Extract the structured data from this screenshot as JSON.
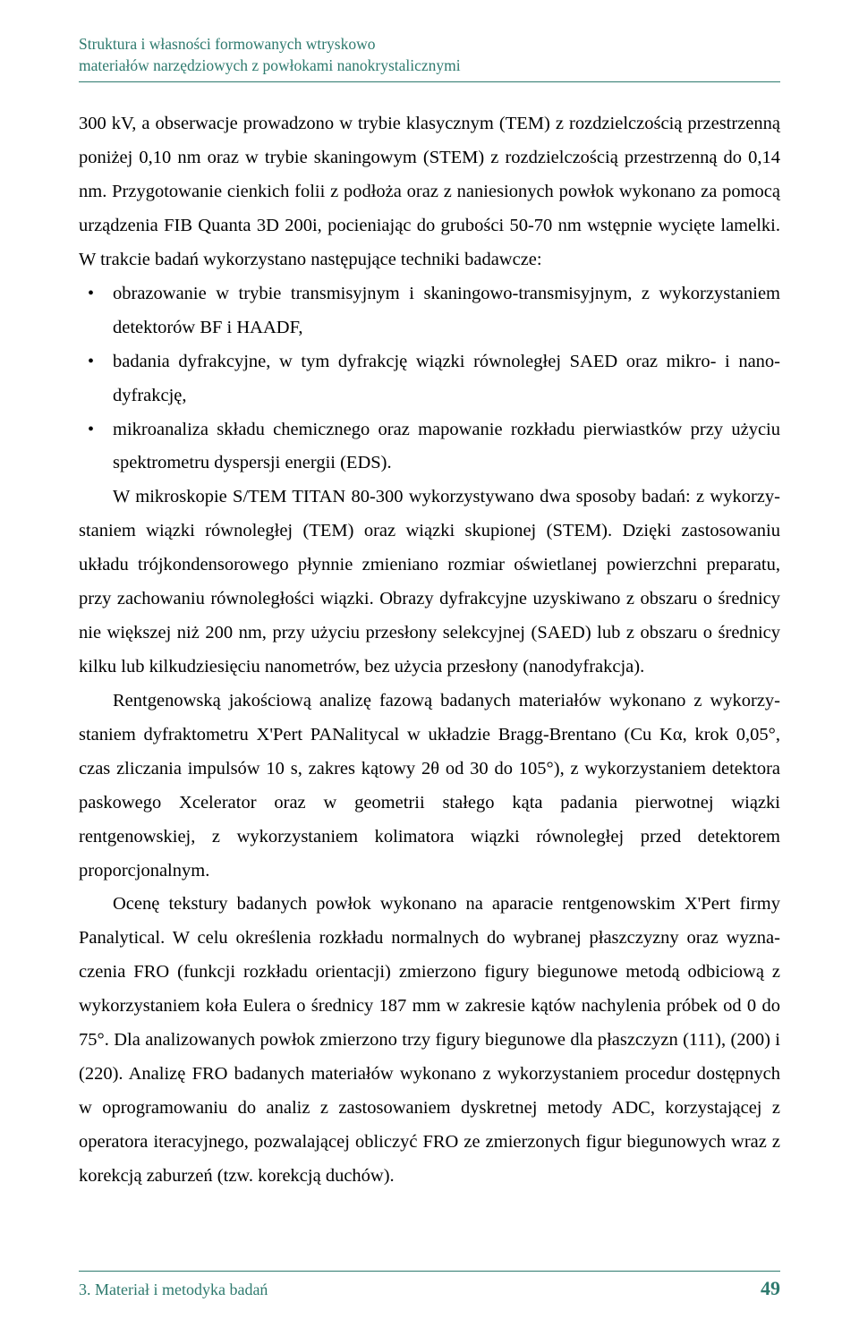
{
  "header": {
    "line1": "Struktura i własności formowanych wtryskowo",
    "line2": "materiałów narzędziowych z powłokami nanokrystalicznymi",
    "color": "#2e7a6e"
  },
  "content": {
    "para1": "300 kV, a obserwacje prowadzono w trybie klasycznym (TEM) z rozdzielczością przestrzenną poniżej 0,10 nm oraz w trybie skaningowym (STEM) z rozdzielczością przestrzenną do 0,14 nm. Przygotowanie cienkich folii z podłoża oraz z naniesionych powłok wykonano za pomocą urządzenia FIB Quanta 3D 200i, pocieniając do grubości 50-70 nm wstępnie wycięte lamelki. W trakcie badań wykorzystano następujące techniki badawcze:",
    "bullets": [
      "obrazowanie w trybie transmisyjnym i skaningowo-transmisyjnym, z wykorzystaniem detektorów BF i HAADF,",
      "badania dyfrakcyjne, w tym dyfrakcję wiązki równoległej SAED oraz mikro- i nano­dyfrakcję,",
      "mikroanaliza składu chemicznego oraz mapowanie rozkładu pierwiastków przy użyciu spektrometru dyspersji energii (EDS)."
    ],
    "para2": "W mikroskopie S/TEM TITAN 80-300 wykorzystywano dwa sposoby badań: z wykorzy­staniem wiązki równoległej (TEM) oraz wiązki skupionej (STEM). Dzięki zastosowaniu układu trójkondensorowego płynnie zmieniano rozmiar oświetlanej powierzchni preparatu, przy zachowaniu równoległości wiązki. Obrazy dyfrakcyjne uzyskiwano z obszaru o średnicy nie większej niż 200 nm, przy użyciu przesłony selekcyjnej (SAED) lub z obszaru o średnicy kilku lub kilkudziesięciu nanometrów, bez użycia przesłony (nanodyfrakcja).",
    "para3": "Rentgenowską jakościową analizę fazową badanych materiałów wykonano z wykorzy­staniem dyfraktometru X'Pert PANalitycal w układzie Bragg-Brentano (Cu Kα, krok 0,05°, czas zliczania impulsów 10 s, zakres kątowy 2θ od 30 do 105°), z wykorzystaniem detektora paskowego Xcelerator oraz w geometrii stałego kąta padania pierwotnej wiązki rentgenowskiej, z wykorzystaniem kolimatora wiązki równoległej przed detektorem proporcjonalnym.",
    "para4": "Ocenę tekstury badanych powłok wykonano na aparacie rentgenowskim X'Pert firmy Panalytical. W celu określenia rozkładu normalnych do wybranej płaszczyzny oraz wyzna­czenia FRO (funkcji rozkładu orientacji) zmierzono figury biegunowe metodą odbiciową z wykorzystaniem koła Eulera o średnicy 187 mm w zakresie kątów nachylenia próbek od 0 do 75°. Dla analizowanych powłok zmierzono trzy figury biegunowe dla płaszczyzn (111), (200) i (220). Analizę FRO badanych materiałów wykonano z wykorzystaniem procedur dostępnych w oprogramowaniu do analiz z zastosowaniem dyskretnej metody ADC, korzystającej z operatora iteracyjnego, pozwalającej obliczyć FRO ze zmierzonych figur biegunowych wraz z korekcją zaburzeń (tzw. korekcją duchów)."
  },
  "footer": {
    "section": "3. Materiał i metodyka badań",
    "page": "49",
    "color": "#2e7a6e"
  },
  "styles": {
    "background_color": "#ffffff",
    "text_color": "#000000",
    "accent_color": "#2e7a6e",
    "body_font_size": 20.5,
    "header_font_size": 17.5,
    "footer_font_size": 18,
    "page_number_font_size": 22,
    "line_height": 1.85
  }
}
